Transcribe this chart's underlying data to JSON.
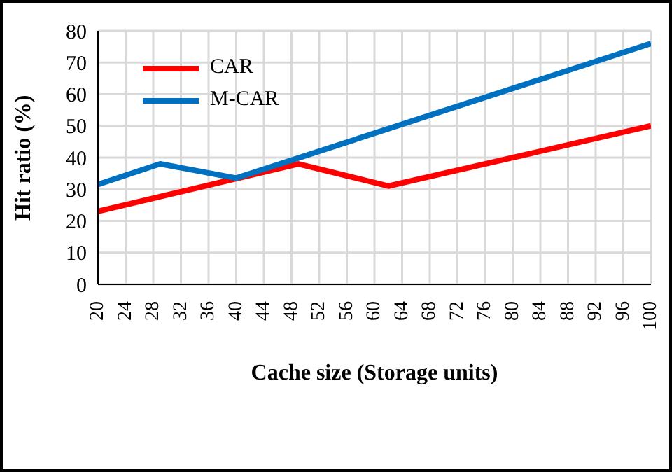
{
  "chart_data": {
    "type": "line",
    "xlabel": "Cache size (Storage units)",
    "ylabel": "Hit ratio (%)",
    "series": [
      {
        "name": "CAR",
        "color": "#ff0000",
        "x": [
          20,
          49,
          62,
          100
        ],
        "values": [
          23,
          38,
          31,
          50
        ]
      },
      {
        "name": "M-CAR",
        "color": "#0070c0",
        "x": [
          20,
          29,
          40,
          100
        ],
        "values": [
          31.5,
          38,
          33.5,
          76
        ]
      }
    ],
    "xlim": [
      20,
      100
    ],
    "xticks": [
      20,
      24,
      28,
      32,
      36,
      40,
      44,
      48,
      52,
      56,
      60,
      64,
      68,
      72,
      76,
      80,
      84,
      88,
      92,
      96,
      100
    ],
    "ylim": [
      0,
      80
    ],
    "yticks": [
      0,
      10,
      20,
      30,
      40,
      50,
      60,
      70,
      80
    ],
    "grid": true,
    "legend": "top left",
    "marker": "none",
    "line_style": "solid"
  }
}
